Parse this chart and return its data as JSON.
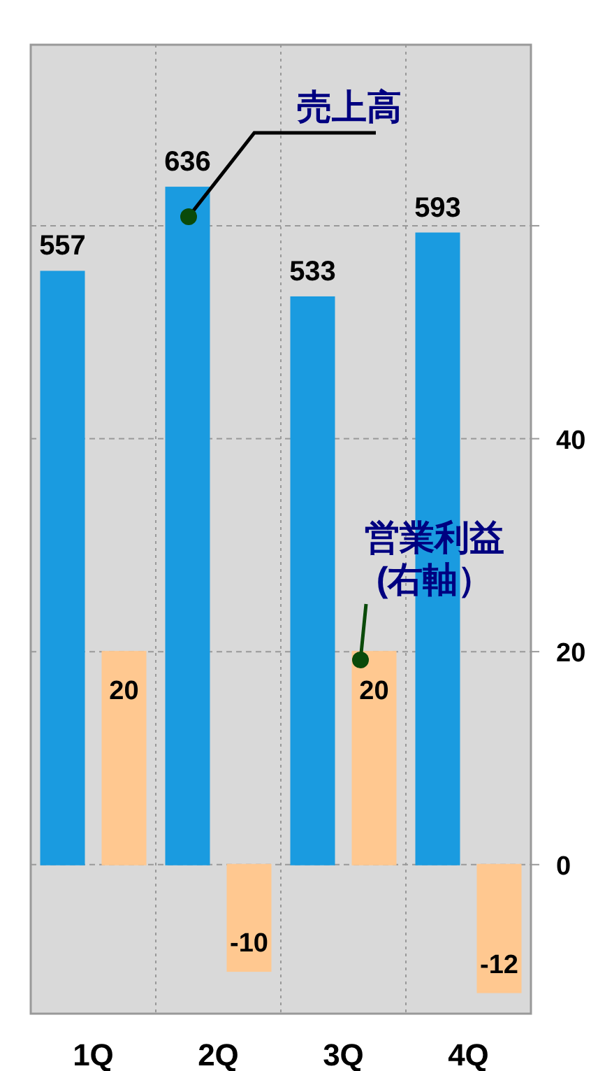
{
  "chart_data": {
    "type": "bar",
    "categories": [
      "1Q",
      "2Q",
      "3Q",
      "4Q"
    ],
    "series": [
      {
        "name": "売上高",
        "color": "#1a9be0",
        "values": [
          557,
          636,
          533,
          593
        ]
      },
      {
        "name": "営業利益\n(右軸）",
        "color": "#ffc890",
        "values": [
          20,
          -10,
          20,
          -12
        ],
        "axis": "y2"
      }
    ],
    "ylim": [
      -140,
      770
    ],
    "y2lim": [
      -14,
      77
    ],
    "y2ticks": [
      0,
      20,
      40,
      {
        "value": 60,
        "label": null
      }
    ],
    "grid": true,
    "data_labels": true
  }
}
